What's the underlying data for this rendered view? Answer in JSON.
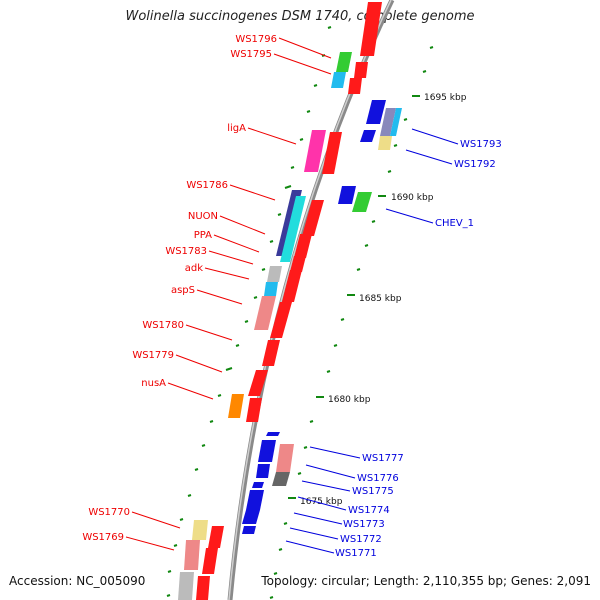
{
  "title": "Wolinella succinogenes DSM 1740, complete genome",
  "footer": {
    "accession": "Accession: NC_005090",
    "stats": "Topology: circular; Length: 2,110,355 bp; Genes: 2,091"
  },
  "colors": {
    "plus_label": "#ee0000",
    "minus_label": "#0000dd",
    "tick": "#118811",
    "backbone": "#888888"
  },
  "scale_ticks": [
    {
      "label": "1695 kbp"
    },
    {
      "label": "1690 kbp"
    },
    {
      "label": "1685 kbp"
    },
    {
      "label": "1680 kbp"
    },
    {
      "label": "1675 kbp"
    }
  ],
  "gene_labels": [
    {
      "name": "WS1796",
      "strand": "+"
    },
    {
      "name": "WS1795",
      "strand": "+"
    },
    {
      "name": "ligA",
      "strand": "+"
    },
    {
      "name": "WS1786",
      "strand": "+"
    },
    {
      "name": "NUON",
      "strand": "+"
    },
    {
      "name": "PPA",
      "strand": "+"
    },
    {
      "name": "WS1783",
      "strand": "+"
    },
    {
      "name": "adk",
      "strand": "+"
    },
    {
      "name": "aspS",
      "strand": "+"
    },
    {
      "name": "WS1780",
      "strand": "+"
    },
    {
      "name": "WS1779",
      "strand": "+"
    },
    {
      "name": "nusA",
      "strand": "+"
    },
    {
      "name": "WS1770",
      "strand": "+"
    },
    {
      "name": "WS1769",
      "strand": "+"
    },
    {
      "name": "WS1793",
      "strand": "-"
    },
    {
      "name": "WS1792",
      "strand": "-"
    },
    {
      "name": "CHEV_1",
      "strand": "-"
    },
    {
      "name": "WS1777",
      "strand": "-"
    },
    {
      "name": "WS1776",
      "strand": "-"
    },
    {
      "name": "WS1775",
      "strand": "-"
    },
    {
      "name": "WS1774",
      "strand": "-"
    },
    {
      "name": "WS1773",
      "strand": "-"
    },
    {
      "name": "WS1772",
      "strand": "-"
    },
    {
      "name": "WS1771",
      "strand": "-"
    }
  ]
}
